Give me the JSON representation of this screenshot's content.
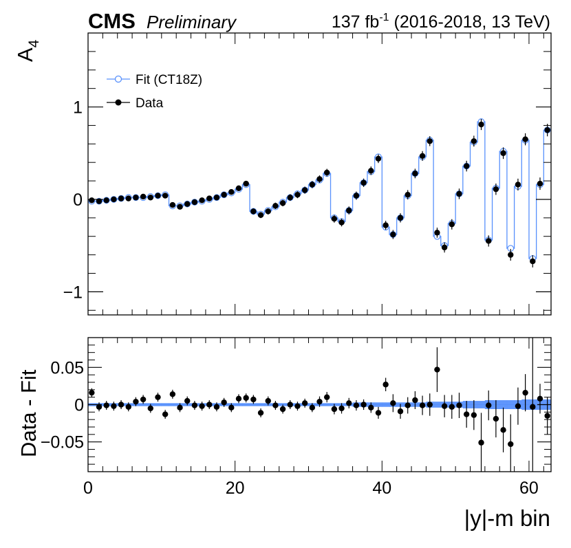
{
  "header": {
    "experiment": "CMS",
    "status": "Preliminary",
    "lumi_value": "137 fb",
    "lumi_exp": "-1",
    "lumi_rest": " (2016-2018, 13 TeV)"
  },
  "legend": {
    "fit_label": "Fit (CT18Z)",
    "data_label": "Data"
  },
  "colors": {
    "fit": "#5790fc",
    "data": "#000000",
    "band": "#5790fc"
  },
  "chart_data": [
    {
      "type": "line",
      "panel": "main",
      "ylabel_main": "A",
      "ylabel_sub": "4",
      "xlim": [
        0,
        63
      ],
      "ylim": [
        -1.25,
        1.8
      ],
      "yticks": [
        -1,
        0,
        1
      ],
      "ytick_labels": [
        "−1",
        "0",
        "1"
      ],
      "x": [
        0.5,
        1.5,
        2.5,
        3.5,
        4.5,
        5.5,
        6.5,
        7.5,
        8.5,
        9.5,
        10.5,
        11.5,
        12.5,
        13.5,
        14.5,
        15.5,
        16.5,
        17.5,
        18.5,
        19.5,
        20.5,
        21.5,
        22.5,
        23.5,
        24.5,
        25.5,
        26.5,
        27.5,
        28.5,
        29.5,
        30.5,
        31.5,
        32.5,
        33.5,
        34.5,
        35.5,
        36.5,
        37.5,
        38.5,
        39.5,
        40.5,
        41.5,
        42.5,
        43.5,
        44.5,
        45.5,
        46.5,
        47.5,
        48.5,
        49.5,
        50.5,
        51.5,
        52.5,
        53.5,
        54.5,
        55.5,
        56.5,
        57.5,
        58.5,
        59.5,
        60.5,
        61.5,
        62.5
      ],
      "series": [
        {
          "name": "Fit (CT18Z)",
          "values": [
            -0.02,
            -0.02,
            -0.01,
            0.0,
            0.01,
            0.02,
            0.02,
            0.02,
            0.03,
            0.04,
            0.05,
            -0.07,
            -0.07,
            -0.05,
            -0.03,
            -0.02,
            0.0,
            0.02,
            0.05,
            0.07,
            0.11,
            0.16,
            -0.13,
            -0.16,
            -0.12,
            -0.08,
            -0.03,
            0.02,
            0.06,
            0.1,
            0.16,
            0.21,
            0.28,
            -0.2,
            -0.24,
            -0.12,
            0.04,
            0.18,
            0.3,
            0.46,
            -0.3,
            -0.38,
            -0.2,
            0.04,
            0.28,
            0.46,
            0.64,
            -0.4,
            -0.5,
            -0.26,
            0.06,
            0.36,
            0.62,
            0.84,
            -0.44,
            0.12,
            0.52,
            -0.53,
            0.14,
            0.64,
            -0.64,
            0.16,
            0.75
          ]
        },
        {
          "name": "Data",
          "values": [
            -0.01,
            -0.02,
            -0.01,
            0.0,
            0.01,
            0.01,
            0.02,
            0.03,
            0.02,
            0.04,
            0.04,
            -0.06,
            -0.08,
            -0.05,
            -0.03,
            -0.01,
            0.01,
            0.02,
            0.05,
            0.08,
            0.12,
            0.17,
            -0.13,
            -0.17,
            -0.13,
            -0.07,
            -0.04,
            0.02,
            0.05,
            0.1,
            0.16,
            0.22,
            0.29,
            -0.21,
            -0.25,
            -0.12,
            0.04,
            0.18,
            0.31,
            0.44,
            -0.28,
            -0.38,
            -0.2,
            0.05,
            0.28,
            0.47,
            0.63,
            -0.36,
            -0.52,
            -0.27,
            0.06,
            0.36,
            0.63,
            0.81,
            -0.45,
            0.11,
            0.5,
            -0.6,
            0.16,
            0.65,
            -0.67,
            0.17,
            0.75
          ]
        }
      ]
    },
    {
      "type": "scatter",
      "panel": "ratio",
      "ylabel": "Data - Fit",
      "xlabel": "|y|-m bin",
      "xlim": [
        0,
        63
      ],
      "ylim": [
        -0.09,
        0.09
      ],
      "yticks": [
        -0.05,
        0,
        0.05
      ],
      "ytick_labels": [
        "−0.05",
        "0",
        "0.05"
      ],
      "xticks": [
        0,
        20,
        40,
        60
      ],
      "xtick_labels": [
        "0",
        "20",
        "40",
        "60"
      ],
      "x": [
        0.5,
        1.5,
        2.5,
        3.5,
        4.5,
        5.5,
        6.5,
        7.5,
        8.5,
        9.5,
        10.5,
        11.5,
        12.5,
        13.5,
        14.5,
        15.5,
        16.5,
        17.5,
        18.5,
        19.5,
        20.5,
        21.5,
        22.5,
        23.5,
        24.5,
        25.5,
        26.5,
        27.5,
        28.5,
        29.5,
        30.5,
        31.5,
        32.5,
        33.5,
        34.5,
        35.5,
        36.5,
        37.5,
        38.5,
        39.5,
        40.5,
        41.5,
        42.5,
        43.5,
        44.5,
        45.5,
        46.5,
        47.5,
        48.5,
        49.5,
        50.5,
        51.5,
        52.5,
        53.5,
        54.5,
        55.5,
        56.5,
        57.5,
        58.5,
        59.5,
        60.5,
        61.5,
        62.5
      ],
      "values": [
        0.016,
        -0.003,
        -0.001,
        -0.002,
        0.0,
        -0.003,
        0.004,
        0.007,
        -0.005,
        0.01,
        -0.013,
        0.014,
        -0.004,
        0.005,
        -0.001,
        -0.002,
        0.0,
        -0.003,
        0.003,
        -0.004,
        0.008,
        0.009,
        0.007,
        -0.011,
        0.005,
        -0.001,
        -0.006,
        0.0,
        -0.002,
        0.002,
        -0.004,
        0.004,
        0.01,
        -0.006,
        -0.005,
        0.002,
        -0.001,
        0.0,
        -0.004,
        -0.011,
        0.027,
        0.002,
        -0.009,
        -0.001,
        0.006,
        -0.001,
        0.0,
        0.047,
        -0.002,
        -0.003,
        -0.001,
        -0.013,
        -0.014,
        -0.051,
        -0.001,
        -0.019,
        -0.034,
        -0.053,
        -0.002,
        0.016,
        -0.003,
        0.008,
        -0.015
      ],
      "errors": [
        0.006,
        0.006,
        0.006,
        0.006,
        0.006,
        0.006,
        0.006,
        0.006,
        0.006,
        0.006,
        0.006,
        0.006,
        0.006,
        0.006,
        0.006,
        0.006,
        0.006,
        0.006,
        0.006,
        0.006,
        0.006,
        0.006,
        0.006,
        0.006,
        0.006,
        0.006,
        0.006,
        0.006,
        0.006,
        0.006,
        0.006,
        0.007,
        0.007,
        0.007,
        0.007,
        0.007,
        0.007,
        0.007,
        0.007,
        0.008,
        0.009,
        0.012,
        0.01,
        0.011,
        0.012,
        0.013,
        0.015,
        0.03,
        0.015,
        0.016,
        0.017,
        0.018,
        0.02,
        0.04,
        0.02,
        0.025,
        0.03,
        0.04,
        0.025,
        0.025,
        0.1,
        0.02,
        0.025
      ],
      "band_halfwidth": [
        0.002,
        0.002,
        0.002,
        0.002,
        0.002,
        0.002,
        0.002,
        0.002,
        0.002,
        0.002,
        0.002,
        0.002,
        0.002,
        0.002,
        0.002,
        0.002,
        0.002,
        0.002,
        0.002,
        0.002,
        0.002,
        0.002,
        0.002,
        0.002,
        0.002,
        0.002,
        0.002,
        0.002,
        0.002,
        0.002,
        0.002,
        0.002,
        0.002,
        0.002,
        0.002,
        0.002,
        0.003,
        0.003,
        0.003,
        0.003,
        0.003,
        0.003,
        0.003,
        0.003,
        0.003,
        0.003,
        0.004,
        0.004,
        0.004,
        0.004,
        0.004,
        0.005,
        0.005,
        0.005,
        0.006,
        0.006,
        0.006,
        0.006,
        0.006,
        0.007,
        0.007,
        0.007,
        0.007
      ]
    }
  ]
}
